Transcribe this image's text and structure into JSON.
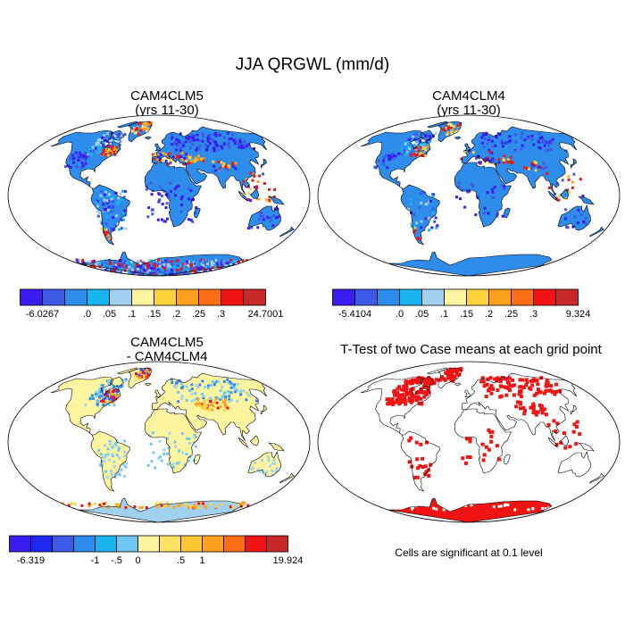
{
  "main_title": "JJA QRGWL (mm/d)",
  "panels": {
    "p1": {
      "title_line1": "CAM4CLM5",
      "title_line2": "(yrs 11-30)"
    },
    "p2": {
      "title_line1": "CAM4CLM4",
      "title_line2": "(yrs 11-30)"
    },
    "p3": {
      "title_line1": "CAM4CLM5",
      "title_line2": "- CAM4CLM4"
    },
    "p4": {
      "title_line1": "T-Test of two Case means at each grid point",
      "note": "Cells are significant at 0.1 level"
    }
  },
  "colorbars": {
    "cb1": {
      "colors": [
        "#3a1cf0",
        "#3c5ae6",
        "#2e8ceb",
        "#19b4f0",
        "#a0d2f0",
        "#fff5a0",
        "#ffd23c",
        "#ffa01e",
        "#ff6e14",
        "#f01414",
        "#c82828"
      ],
      "labels": [
        "-6.0267",
        ".0",
        ".05",
        ".1",
        ".15",
        ".2",
        ".25",
        ".3",
        "24.7001"
      ]
    },
    "cb2": {
      "colors": [
        "#3a1cf0",
        "#3c5ae6",
        "#2e8ceb",
        "#19b4f0",
        "#a0d2f0",
        "#fff5a0",
        "#ffd23c",
        "#ffa01e",
        "#ff6e14",
        "#f01414",
        "#c82828"
      ],
      "labels": [
        "-5.4104",
        ".0",
        ".05",
        ".1",
        ".15",
        ".2",
        ".25",
        ".3",
        "9.324"
      ]
    },
    "cb3": {
      "colors": [
        "#3a1cf0",
        "#1e28f0",
        "#3c5ae6",
        "#2e8ceb",
        "#19b4f0",
        "#6ec8f0",
        "#fff5a0",
        "#ffe164",
        "#ffc832",
        "#ffa01e",
        "#ff6e14",
        "#f01414",
        "#c82828"
      ],
      "labels": [
        "-6.319",
        "-1",
        "-.5",
        "0",
        ".5",
        "1",
        "19.924"
      ]
    }
  },
  "map_colors": {
    "ocean": "#ffffff",
    "land_p1": "#2e8ceb",
    "land_p2": "#2e8ceb",
    "land_p3": "#fff5a0",
    "antarctica_p3": "#a0d2f0",
    "significant": "#f01414"
  }
}
